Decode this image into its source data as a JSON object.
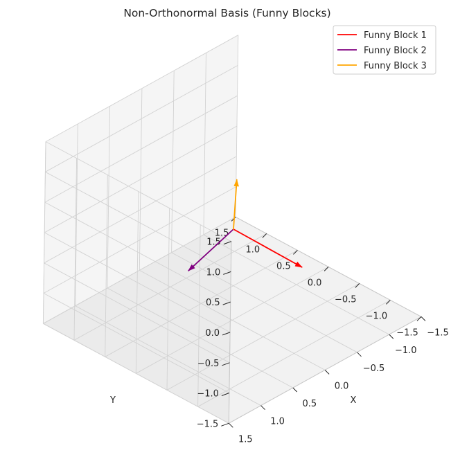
{
  "chart_data": {
    "type": "line",
    "subtype": "3d-quiver",
    "title": "Non-Orthonormal Basis (Funny Blocks)",
    "xlabel": "X",
    "ylabel": "Y",
    "zlabel": "",
    "xlim": [
      -1.5,
      1.5
    ],
    "ylim": [
      -1.5,
      1.5
    ],
    "zlim": [
      -1.5,
      1.5
    ],
    "ticks": {
      "x": [
        "−1.5",
        "−1.0",
        "−0.5",
        "0.0",
        "0.5",
        "1.0",
        "1.5"
      ],
      "y": [
        "−1.5",
        "−1.0",
        "−0.5",
        "0.0",
        "0.5",
        "1.0",
        "1.5"
      ],
      "z": [
        "−1.5",
        "−1.0",
        "−0.5",
        "0.0",
        "0.5",
        "1.0",
        "1.5"
      ]
    },
    "tick_values": [
      -1.5,
      -1.0,
      -0.5,
      0.0,
      0.5,
      1.0,
      1.5
    ],
    "grid": true,
    "legend_position": "top-right",
    "series": [
      {
        "name": "Funny Block 1",
        "color": "#ff0000",
        "origin": [
          0,
          0,
          0
        ],
        "vector": [
          -0.21,
          -0.89,
          -0.26
        ]
      },
      {
        "name": "Funny Block 2",
        "color": "#800080",
        "origin": [
          0,
          0,
          0
        ],
        "vector": [
          0.5,
          0.2,
          -0.5
        ]
      },
      {
        "name": "Funny Block 3",
        "color": "#ffa500",
        "origin": [
          0,
          0,
          0
        ],
        "vector": [
          -0.12,
          0.08,
          0.7
        ]
      }
    ]
  }
}
